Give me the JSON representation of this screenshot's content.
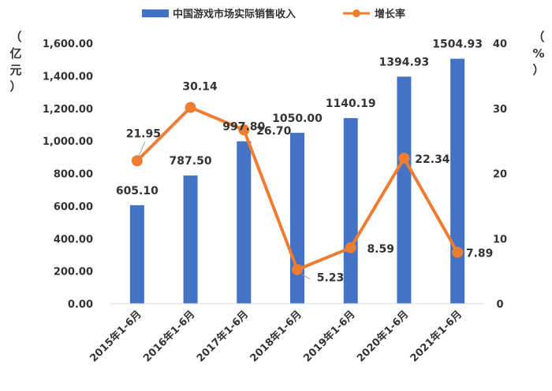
{
  "chart_data": {
    "type": "bar",
    "categories": [
      "2015年1-6月",
      "2016年1-6月",
      "2017年1-6月",
      "2018年1-6月",
      "2019年1-6月",
      "2020年1-6月",
      "2021年1-6月"
    ],
    "series": [
      {
        "name": "中国游戏市场实际销售收入",
        "type": "bar",
        "axis": "left",
        "values": [
          605.1,
          787.5,
          997.8,
          1050.0,
          1140.19,
          1394.93,
          1504.93
        ],
        "labels": [
          "605.10",
          "787.50",
          "997.80",
          "1050.00",
          "1140.19",
          "1394.93",
          "1504.93"
        ],
        "color": "#4472C4"
      },
      {
        "name": "增长率",
        "type": "line",
        "axis": "right",
        "values": [
          21.95,
          30.14,
          26.7,
          5.23,
          8.59,
          22.34,
          7.89
        ],
        "labels": [
          "21.95",
          "30.14",
          "26.70",
          "5.23",
          "8.59",
          "22.34",
          "7.89"
        ],
        "color": "#ED7D31"
      }
    ],
    "y_left": {
      "label_chars": [
        "（",
        "亿",
        "元",
        "）"
      ],
      "ylim": [
        0,
        1600
      ],
      "ticks": [
        0,
        200,
        400,
        600,
        800,
        1000,
        1200,
        1400,
        1600
      ],
      "tick_labels": [
        "0.00",
        "200.00",
        "400.00",
        "600.00",
        "800.00",
        "1,000.00",
        "1,200.00",
        "1,400.00",
        "1,600.00"
      ]
    },
    "y_right": {
      "label_chars": [
        "（",
        "%",
        "）"
      ],
      "ylim": [
        0,
        40
      ],
      "ticks": [
        0,
        10,
        20,
        30,
        40
      ],
      "tick_labels": [
        "0",
        "10",
        "20",
        "30",
        "40"
      ]
    },
    "grid": false,
    "legend_position": "top"
  }
}
